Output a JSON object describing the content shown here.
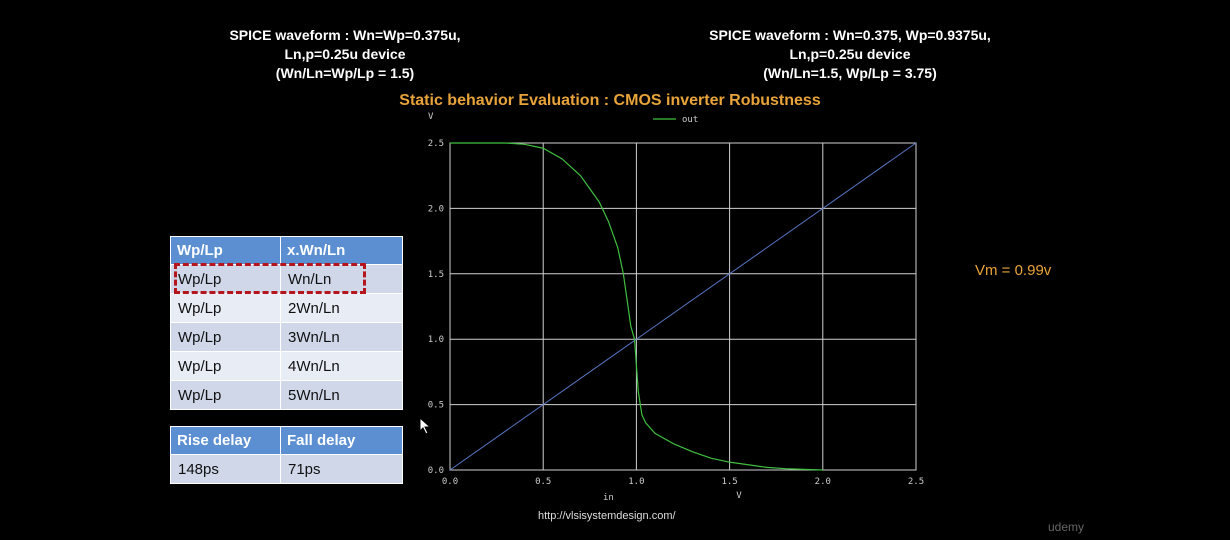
{
  "header_left": {
    "line1": "SPICE waveform : Wn=Wp=0.375u,",
    "line2": "Ln,p=0.25u device",
    "line3": "(Wn/Ln=Wp/Lp = 1.5)"
  },
  "header_right": {
    "line1": "SPICE waveform : Wn=0.375, Wp=0.9375u,",
    "line2": "Ln,p=0.25u device",
    "line3": "(Wn/Ln=1.5, Wp/Lp = 3.75)"
  },
  "title": "Static behavior Evaluation : CMOS inverter Robustness",
  "vm_label": "Vm = 0.99v",
  "ratio_table": {
    "headers": [
      "Wp/Lp",
      "x.Wn/Ln"
    ],
    "rows": [
      [
        "Wp/Lp",
        "Wn/Ln"
      ],
      [
        "Wp/Lp",
        "2Wn/Ln"
      ],
      [
        "Wp/Lp",
        "3Wn/Ln"
      ],
      [
        "Wp/Lp",
        "4Wn/Ln"
      ],
      [
        "Wp/Lp",
        "5Wn/Ln"
      ]
    ]
  },
  "delay_table": {
    "headers": [
      "Rise delay",
      "Fall delay"
    ],
    "row": [
      "148ps",
      "71ps"
    ]
  },
  "url": "http://vlsisystemdesign.com/",
  "watermark": "udemy",
  "colors": {
    "accent": "#e8a33a",
    "table_header": "#5b8fd2",
    "highlight": "#b5151c",
    "out_curve": "#3fbf3f",
    "ref_line": "#5a78c8"
  },
  "chart_data": {
    "type": "line",
    "xlabel": "in",
    "xunit": "V",
    "yunit": "V",
    "xlim": [
      0,
      2.5
    ],
    "ylim": [
      0,
      2.5
    ],
    "x_ticks": [
      "0.0",
      "0.5",
      "1.0",
      "1.5",
      "2.0",
      "2.5"
    ],
    "y_ticks": [
      "0.0",
      "0.5",
      "1.0",
      "1.5",
      "2.0",
      "2.5"
    ],
    "grid": true,
    "legend": "top-center",
    "series": [
      {
        "name": "out",
        "x": [
          0,
          0.3,
          0.4,
          0.5,
          0.6,
          0.7,
          0.8,
          0.85,
          0.9,
          0.93,
          0.95,
          0.97,
          0.99,
          1.0,
          1.01,
          1.03,
          1.05,
          1.1,
          1.2,
          1.3,
          1.4,
          1.5,
          1.6,
          1.7,
          1.8,
          1.9,
          2.0
        ],
        "y": [
          2.5,
          2.5,
          2.49,
          2.46,
          2.38,
          2.25,
          2.05,
          1.9,
          1.7,
          1.5,
          1.3,
          1.1,
          1.0,
          0.8,
          0.6,
          0.42,
          0.36,
          0.28,
          0.2,
          0.14,
          0.09,
          0.06,
          0.04,
          0.02,
          0.01,
          0.005,
          0.0
        ]
      },
      {
        "name": "",
        "x": [
          0,
          2.5
        ],
        "y": [
          0,
          2.5
        ]
      }
    ]
  }
}
